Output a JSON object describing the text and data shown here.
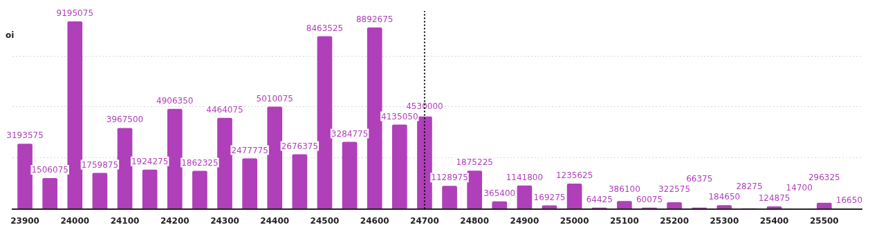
{
  "chart_data": {
    "type": "bar",
    "ylabel": "oi",
    "categories": [
      "23900",
      null,
      "24000",
      null,
      "24100",
      null,
      "24200",
      null,
      "24300",
      null,
      "24400",
      null,
      "24500",
      null,
      "24600",
      null,
      "24700",
      null,
      "24800",
      null,
      "24900",
      null,
      "25000",
      null,
      "25100",
      null,
      "25200",
      null,
      "25300",
      null,
      "25400",
      null,
      "25500",
      null
    ],
    "values": [
      3193575,
      1506075,
      9195075,
      1759875,
      3967500,
      1924275,
      4906350,
      1862325,
      4464075,
      2477775,
      5010075,
      2676375,
      8463525,
      3284775,
      8892675,
      4135050,
      4530000,
      1128975,
      1875225,
      365400,
      1141800,
      169275,
      1235625,
      64425,
      386100,
      60075,
      322575,
      66375,
      184650,
      28275,
      124875,
      14700,
      296325,
      16650
    ],
    "color": "#b03fba",
    "data_labels": true,
    "ylim": [
      0,
      9700000
    ],
    "yticks": [
      {
        "value": 0,
        "label": null
      },
      {
        "value": 2500000,
        "label": null
      },
      {
        "value": 5000000,
        "label": null
      },
      {
        "value": 7500000,
        "label": null
      }
    ],
    "tick_labels": "x",
    "grid": "y",
    "ref_lines": [
      {
        "axis": "x",
        "value": "24700",
        "line_style": "dotted",
        "color": "#000000"
      }
    ]
  }
}
